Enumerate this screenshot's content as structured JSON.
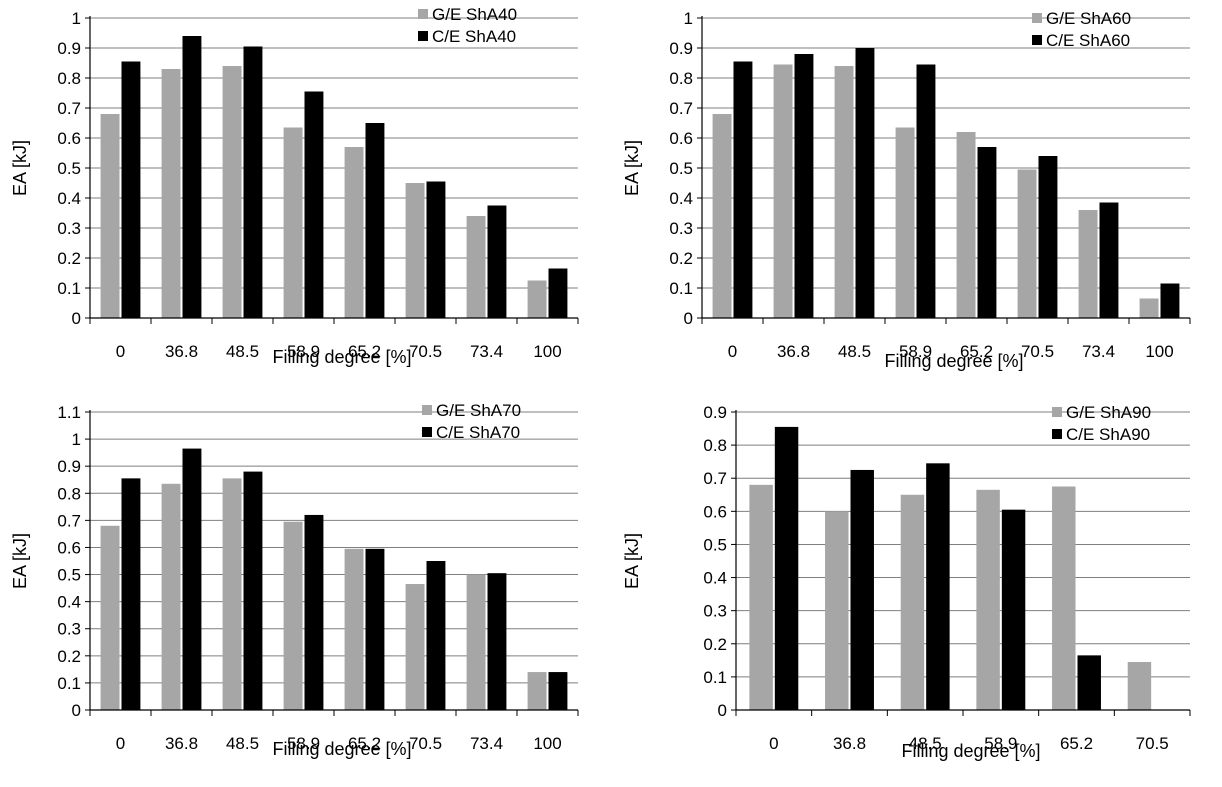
{
  "colors": {
    "ge": "#a6a6a6",
    "ce": "#000000",
    "grid": "#7f7f7f",
    "axis": "#000000"
  },
  "chart_data": [
    {
      "type": "bar",
      "categories": [
        "0",
        "36.8",
        "48.5",
        "58.9",
        "65.2",
        "70.5",
        "73.4",
        "100"
      ],
      "series": [
        {
          "name": "G/E ShA40",
          "values": [
            0.68,
            0.83,
            0.84,
            0.635,
            0.57,
            0.45,
            0.34,
            0.125
          ]
        },
        {
          "name": "C/E ShA40",
          "values": [
            0.855,
            0.94,
            0.905,
            0.755,
            0.65,
            0.455,
            0.375,
            0.165
          ]
        }
      ],
      "xlabel": "Filling degree [%]",
      "ylabel": "EA [kJ]",
      "ylim": [
        0,
        1
      ],
      "yticks": [
        "0",
        "0.1",
        "0.2",
        "0.3",
        "0.4",
        "0.5",
        "0.6",
        "0.7",
        "0.8",
        "0.9",
        "1"
      ],
      "grid": true,
      "legend": "top-right"
    },
    {
      "type": "bar",
      "categories": [
        "0",
        "36.8",
        "48.5",
        "58.9",
        "65.2",
        "70.5",
        "73.4",
        "100"
      ],
      "series": [
        {
          "name": "G/E ShA60",
          "values": [
            0.68,
            0.845,
            0.84,
            0.635,
            0.62,
            0.495,
            0.36,
            0.065
          ]
        },
        {
          "name": "C/E ShA60",
          "values": [
            0.855,
            0.88,
            0.9,
            0.845,
            0.57,
            0.54,
            0.385,
            0.115
          ]
        }
      ],
      "xlabel": "Filling degree [%]",
      "ylabel": "EA [kJ]",
      "ylim": [
        0,
        1
      ],
      "yticks": [
        "0",
        "0.1",
        "0.2",
        "0.3",
        "0.4",
        "0.5",
        "0.6",
        "0.7",
        "0.8",
        "0.9",
        "1"
      ],
      "grid": true,
      "legend": "top-right"
    },
    {
      "type": "bar",
      "categories": [
        "0",
        "36.8",
        "48.5",
        "58.9",
        "65.2",
        "70.5",
        "73.4",
        "100"
      ],
      "series": [
        {
          "name": "G/E ShA70",
          "values": [
            0.68,
            0.835,
            0.855,
            0.695,
            0.595,
            0.465,
            0.5,
            0.14
          ]
        },
        {
          "name": "C/E ShA70",
          "values": [
            0.855,
            0.965,
            0.88,
            0.72,
            0.595,
            0.55,
            0.505,
            0.14
          ]
        }
      ],
      "xlabel": "Filling degree [%]",
      "ylabel": "EA [kJ]",
      "ylim": [
        0,
        1.1
      ],
      "yticks": [
        "0",
        "0.1",
        "0.2",
        "0.3",
        "0.4",
        "0.5",
        "0.6",
        "0.7",
        "0.8",
        "0.9",
        "1",
        "1.1"
      ],
      "grid": true,
      "legend": "top-right"
    },
    {
      "type": "bar",
      "categories": [
        "0",
        "36.8",
        "48.5",
        "58.9",
        "65.2",
        "70.5"
      ],
      "series": [
        {
          "name": "G/E ShA90",
          "values": [
            0.68,
            0.6,
            0.65,
            0.665,
            0.675,
            0.145
          ]
        },
        {
          "name": "C/E ShA90",
          "values": [
            0.855,
            0.725,
            0.745,
            0.605,
            0.165,
            null
          ]
        }
      ],
      "xlabel": "Filling degree [%]",
      "ylabel": "EA [kJ]",
      "ylim": [
        0,
        0.9
      ],
      "yticks": [
        "0",
        "0.1",
        "0.2",
        "0.3",
        "0.4",
        "0.5",
        "0.6",
        "0.7",
        "0.8",
        "0.9"
      ],
      "grid": true,
      "legend": "top-right"
    }
  ]
}
